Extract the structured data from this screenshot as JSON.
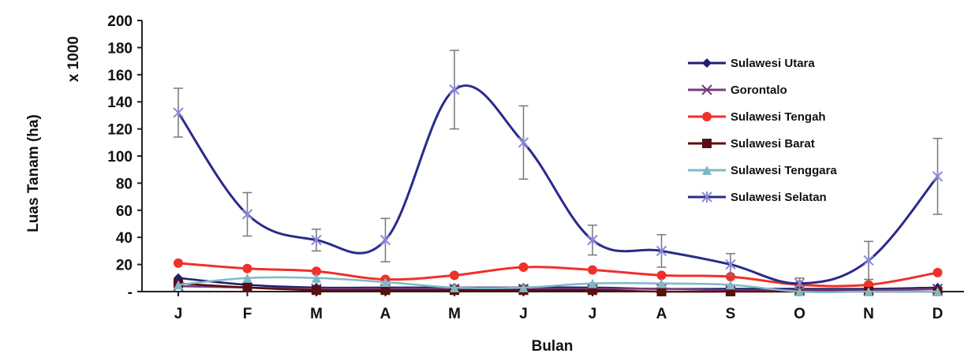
{
  "chart_data": {
    "type": "line",
    "ylabel": "Luas Tanam (ha)",
    "y_multiplier": "x 1000",
    "xlabel": "Bulan",
    "categories": [
      "J",
      "F",
      "M",
      "A",
      "M",
      "J",
      "J",
      "A",
      "S",
      "O",
      "N",
      "D"
    ],
    "ylim": [
      0,
      200
    ],
    "yticks": [
      {
        "value": 0,
        "label": "-"
      },
      {
        "value": 20,
        "label": "20"
      },
      {
        "value": 40,
        "label": "40"
      },
      {
        "value": 60,
        "label": "60"
      },
      {
        "value": 80,
        "label": "80"
      },
      {
        "value": 100,
        "label": "100"
      },
      {
        "value": 120,
        "label": "120"
      },
      {
        "value": 140,
        "label": "140"
      },
      {
        "value": 160,
        "label": "160"
      },
      {
        "value": 180,
        "label": "180"
      },
      {
        "value": 200,
        "label": "200"
      }
    ],
    "legend_position": "right",
    "series": [
      {
        "name": "Sulawesi Utara",
        "color": "#1f1f6e",
        "marker": "diamond",
        "values": [
          10,
          5,
          3,
          3,
          3,
          3,
          3,
          2,
          2,
          2,
          2,
          3
        ]
      },
      {
        "name": "Gorontalo",
        "color": "#7a3a7a",
        "marker": "x",
        "values": [
          4,
          3,
          2,
          2,
          2,
          2,
          2,
          2,
          1,
          1,
          1,
          2
        ]
      },
      {
        "name": "Sulawesi Tengah",
        "color": "#f0302a",
        "marker": "circle",
        "values": [
          21,
          17,
          15,
          9,
          12,
          18,
          16,
          12,
          11,
          5,
          5,
          14
        ]
      },
      {
        "name": "Sulawesi Barat",
        "color": "#5a1010",
        "marker": "square",
        "values": [
          6,
          3,
          1,
          1,
          1,
          1,
          1,
          0,
          0,
          0,
          0,
          0
        ]
      },
      {
        "name": "Sulawesi Tenggara",
        "color": "#7fb8c8",
        "marker": "triangle",
        "values": [
          5,
          10,
          10,
          7,
          3,
          3,
          6,
          6,
          5,
          0,
          0,
          0
        ]
      },
      {
        "name": "Sulawesi Selatan",
        "color": "#2a2a8a",
        "marker": "star",
        "values": [
          132,
          57,
          38,
          38,
          149,
          110,
          38,
          30,
          20,
          6,
          23,
          85
        ],
        "error_bars": [
          18,
          16,
          8,
          16,
          29,
          27,
          11,
          12,
          8,
          4,
          14,
          28
        ]
      }
    ]
  }
}
